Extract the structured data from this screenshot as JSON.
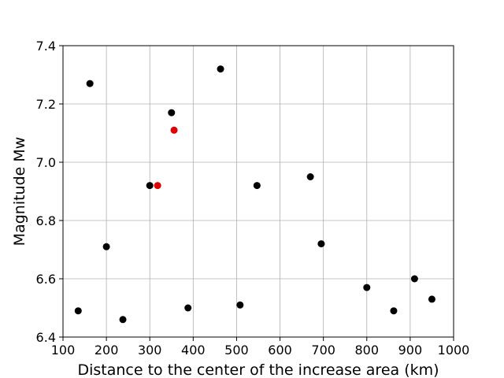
{
  "chart_data": {
    "type": "scatter",
    "title": "",
    "xlabel": "Distance to the center of the increase area (km)",
    "ylabel": "Magnitude Mw",
    "xlim": [
      100,
      1000
    ],
    "ylim": [
      6.4,
      7.4
    ],
    "xticks": [
      100,
      200,
      300,
      400,
      500,
      600,
      700,
      800,
      900,
      1000
    ],
    "yticks": [
      6.4,
      6.6,
      6.8,
      7.0,
      7.2,
      7.4
    ],
    "xtick_labels": [
      "100",
      "200",
      "300",
      "400",
      "500",
      "600",
      "700",
      "800",
      "900",
      "1000"
    ],
    "ytick_labels": [
      "6.4",
      "6.6",
      "6.8",
      "7.0",
      "7.2",
      "7.4"
    ],
    "grid": true,
    "legend": "none",
    "series": [
      {
        "color": "#000000",
        "points": [
          {
            "x": 135,
            "y": 6.49
          },
          {
            "x": 162,
            "y": 7.27
          },
          {
            "x": 200,
            "y": 6.71
          },
          {
            "x": 238,
            "y": 6.46
          },
          {
            "x": 300,
            "y": 6.92
          },
          {
            "x": 350,
            "y": 7.17
          },
          {
            "x": 388,
            "y": 6.5
          },
          {
            "x": 463,
            "y": 7.32
          },
          {
            "x": 508,
            "y": 6.51
          },
          {
            "x": 547,
            "y": 6.92
          },
          {
            "x": 670,
            "y": 6.95
          },
          {
            "x": 695,
            "y": 6.72
          },
          {
            "x": 800,
            "y": 6.57
          },
          {
            "x": 862,
            "y": 6.49
          },
          {
            "x": 910,
            "y": 6.6
          },
          {
            "x": 950,
            "y": 6.53
          }
        ]
      },
      {
        "color": "#e00000",
        "points": [
          {
            "x": 318,
            "y": 6.92
          },
          {
            "x": 356,
            "y": 7.11
          }
        ]
      }
    ]
  }
}
